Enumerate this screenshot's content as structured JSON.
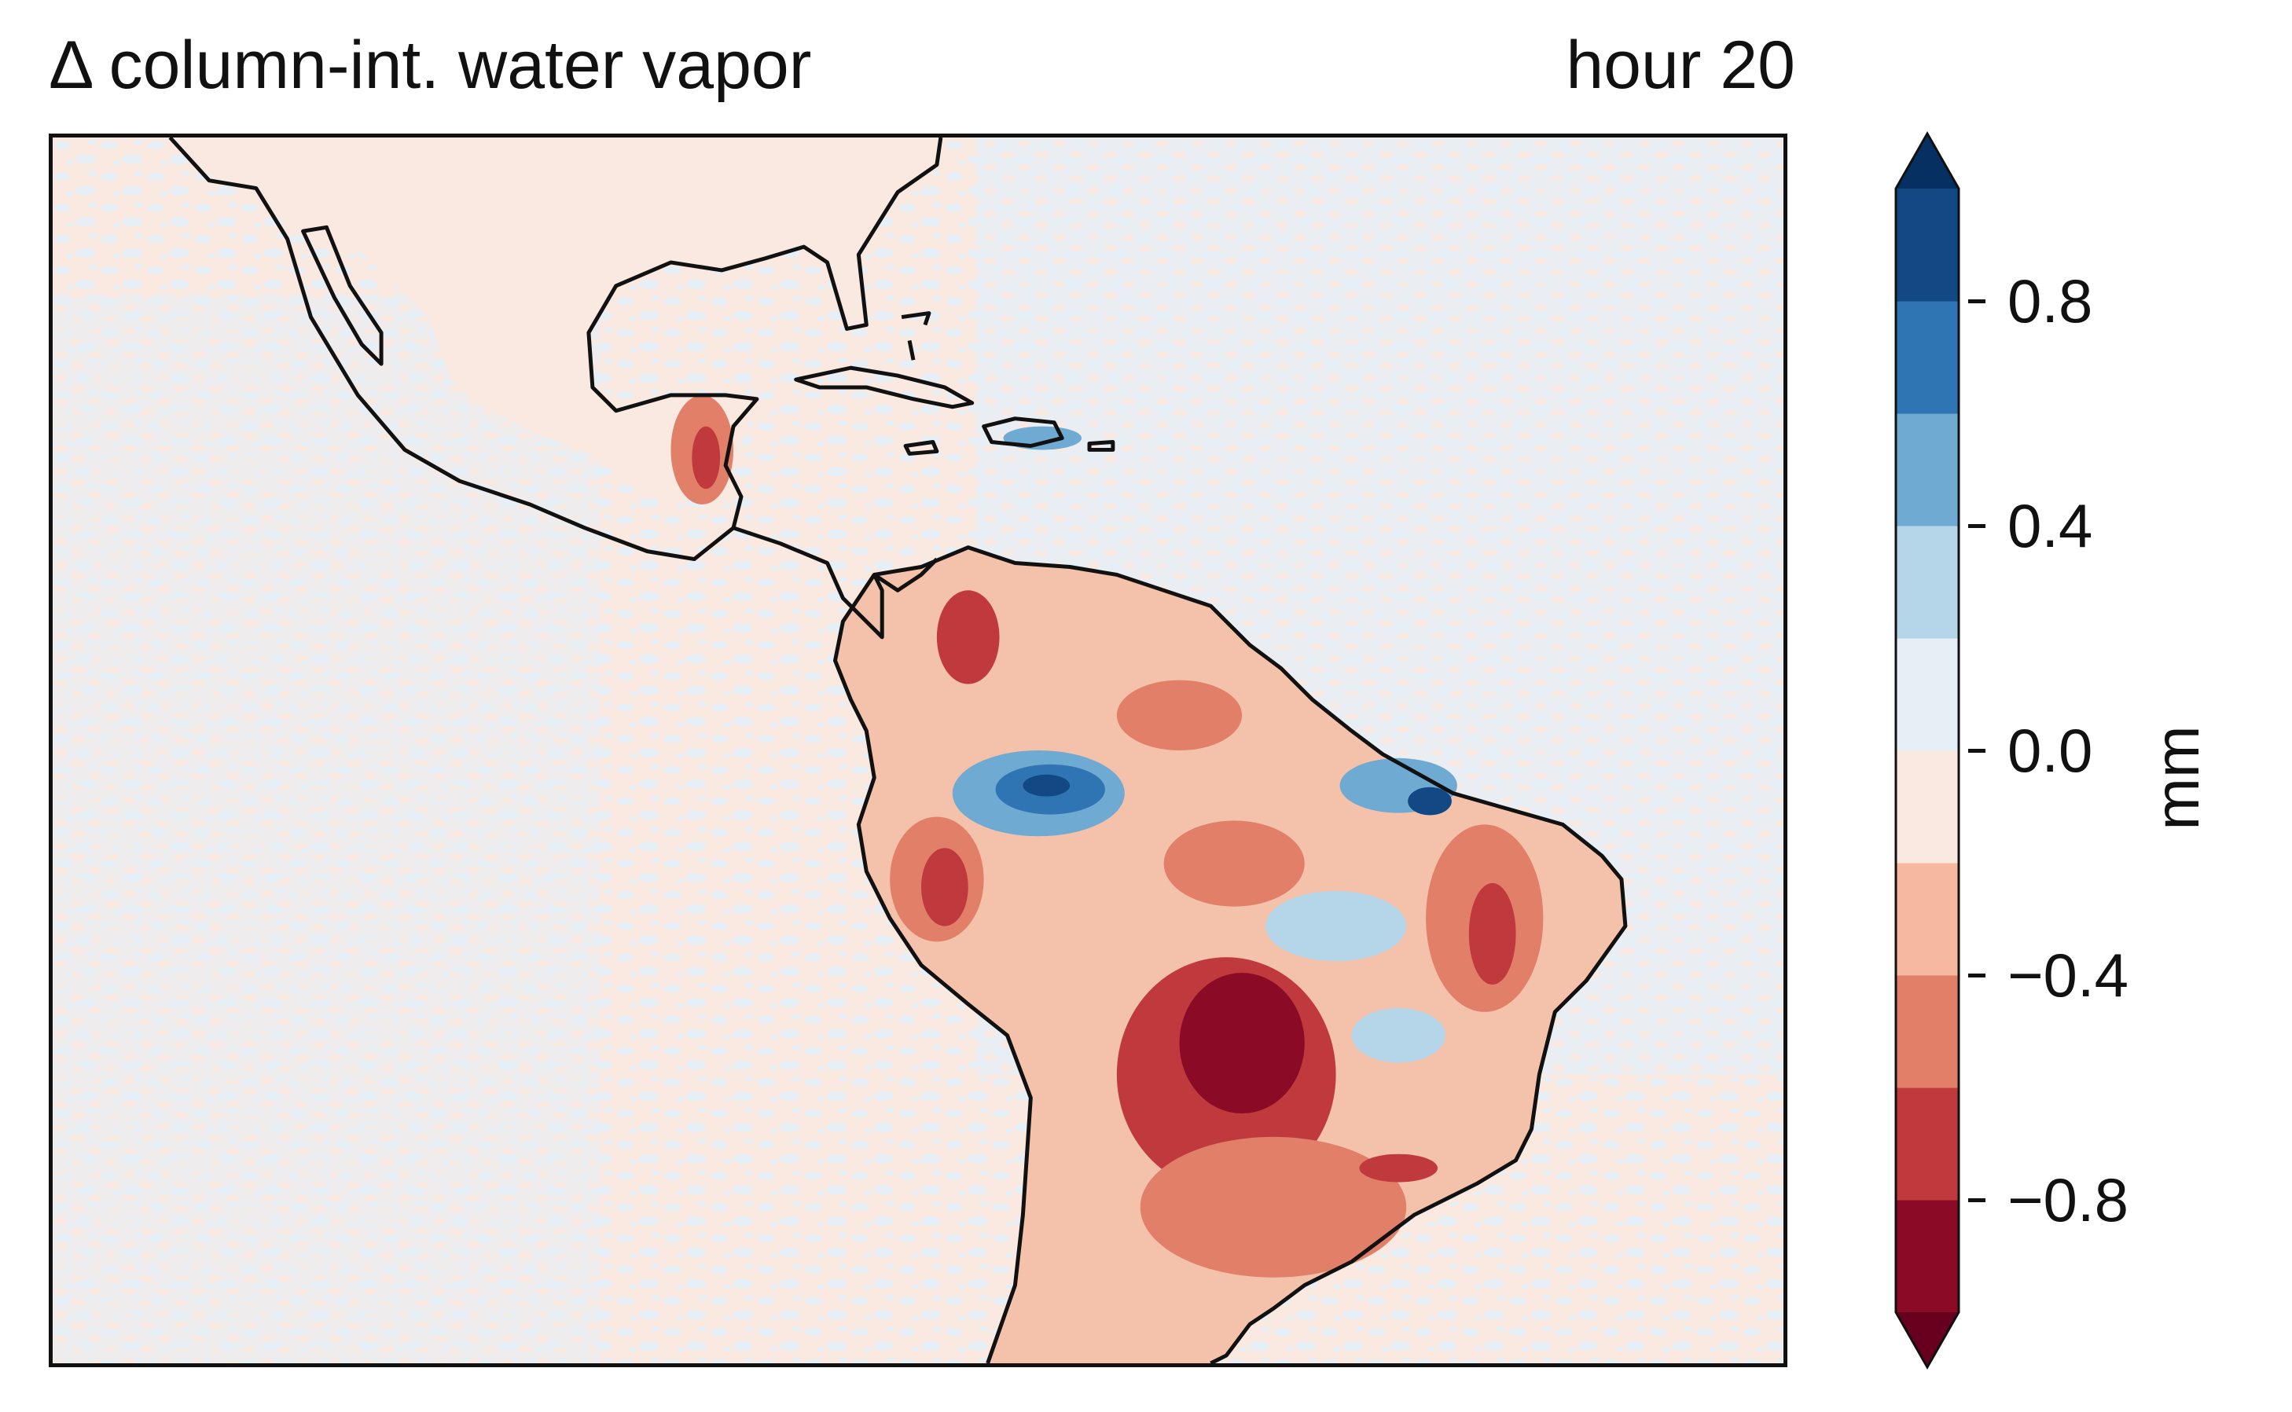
{
  "map": {
    "title": "Δ column-int. water vapor",
    "time_label": "hour 20"
  },
  "colorbar": {
    "unit_label": "mm",
    "tick_labels": [
      "0.8",
      "0.4",
      "0.0",
      "−0.4",
      "−0.8"
    ],
    "tick_values": [
      0.8,
      0.4,
      0.0,
      -0.4,
      -0.8
    ],
    "range": [
      -1.0,
      1.0
    ],
    "levels": [
      -1.0,
      -0.8,
      -0.6,
      -0.4,
      -0.2,
      0.0,
      0.2,
      0.4,
      0.6,
      0.8,
      1.0
    ],
    "extend": "both",
    "bin_colors": [
      "#8b0a25",
      "#c0393d",
      "#e27f68",
      "#f6b9a0",
      "#f9e9e1",
      "#e6eff6",
      "#b4d6e8",
      "#6eaad1",
      "#2f74b3",
      "#124883"
    ],
    "under_color": "#67001f",
    "over_color": "#053061"
  },
  "colors": {
    "coastline": "#111111",
    "background_negative": "#f9e9e1",
    "background_positive": "#e6eff6"
  }
}
